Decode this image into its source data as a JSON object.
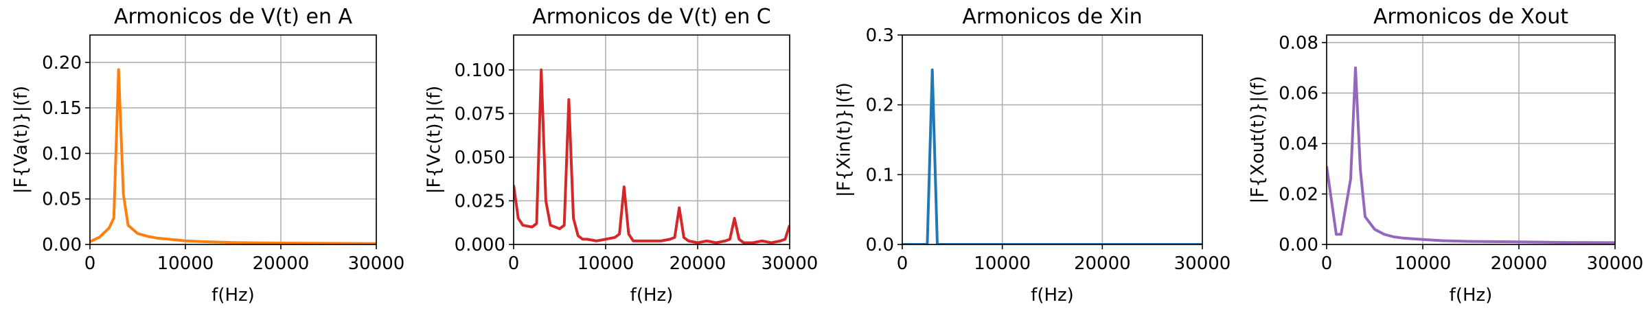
{
  "chart_data": [
    {
      "type": "line",
      "title": "Armonicos de V(t) en A",
      "xlabel": "f(Hz)",
      "ylabel": "|F{Va(t)}|(f)",
      "xlim": [
        0,
        30000
      ],
      "ylim": [
        0,
        0.23
      ],
      "xticks": [
        0,
        10000,
        20000,
        30000
      ],
      "xtick_labels": [
        "0",
        "10000",
        "20000",
        "30000"
      ],
      "yticks": [
        0,
        0.05,
        0.1,
        0.15,
        0.2
      ],
      "ytick_labels": [
        "0.00",
        "0.05",
        "0.10",
        "0.15",
        "0.20"
      ],
      "grid": true,
      "color": "#ff7f0e",
      "series": [
        {
          "x": [
            0,
            1000,
            2000,
            2500,
            3000,
            3500,
            4000,
            5000,
            6000,
            7000,
            8000,
            9000,
            10000,
            12000,
            15000,
            20000,
            25000,
            30000
          ],
          "y": [
            0.003,
            0.008,
            0.018,
            0.029,
            0.192,
            0.055,
            0.021,
            0.012,
            0.009,
            0.007,
            0.006,
            0.005,
            0.004,
            0.003,
            0.002,
            0.0015,
            0.0012,
            0.001
          ]
        }
      ]
    },
    {
      "type": "line",
      "title": "Armonicos de V(t) en C",
      "xlabel": "f(Hz)",
      "ylabel": "|F{Vc(t)}|(f)",
      "xlim": [
        0,
        30000
      ],
      "ylim": [
        0,
        0.12
      ],
      "xticks": [
        0,
        10000,
        20000,
        30000
      ],
      "xtick_labels": [
        "0",
        "10000",
        "20000",
        "30000"
      ],
      "yticks": [
        0,
        0.025,
        0.05,
        0.075,
        0.1
      ],
      "ytick_labels": [
        "0.000",
        "0.025",
        "0.050",
        "0.075",
        "0.100"
      ],
      "grid": true,
      "color": "#d62728",
      "series": [
        {
          "x": [
            0,
            500,
            1000,
            2000,
            2500,
            3000,
            3500,
            4000,
            5000,
            5500,
            6000,
            6500,
            7000,
            7500,
            8000,
            9000,
            10000,
            11000,
            11500,
            12000,
            12500,
            13000,
            14000,
            15000,
            16000,
            17000,
            17500,
            18000,
            18500,
            19000,
            20000,
            21000,
            22000,
            23000,
            23500,
            24000,
            24500,
            25000,
            26000,
            27000,
            28000,
            29000,
            29500,
            30000
          ],
          "y": [
            0.034,
            0.015,
            0.011,
            0.01,
            0.012,
            0.1,
            0.025,
            0.011,
            0.009,
            0.011,
            0.083,
            0.015,
            0.005,
            0.003,
            0.003,
            0.002,
            0.003,
            0.004,
            0.006,
            0.033,
            0.006,
            0.002,
            0.002,
            0.002,
            0.002,
            0.003,
            0.004,
            0.021,
            0.004,
            0.002,
            0.001,
            0.002,
            0.001,
            0.002,
            0.003,
            0.015,
            0.003,
            0.001,
            0.001,
            0.002,
            0.001,
            0.002,
            0.003,
            0.011
          ]
        }
      ]
    },
    {
      "type": "line",
      "title": "Armonicos de Xin",
      "xlabel": "f(Hz)",
      "ylabel": "|F{Xin(t)}|(f)",
      "xlim": [
        0,
        30000
      ],
      "ylim": [
        0,
        0.3
      ],
      "xticks": [
        0,
        10000,
        20000,
        30000
      ],
      "xtick_labels": [
        "0",
        "10000",
        "20000",
        "30000"
      ],
      "yticks": [
        0,
        0.1,
        0.2,
        0.3
      ],
      "ytick_labels": [
        "0.0",
        "0.1",
        "0.2",
        "0.3"
      ],
      "grid": true,
      "color": "#1f77b4",
      "series": [
        {
          "x": [
            0,
            2500,
            3000,
            3500,
            30000
          ],
          "y": [
            0,
            0,
            0.25,
            0,
            0
          ]
        }
      ]
    },
    {
      "type": "line",
      "title": "Armonicos de Xout",
      "xlabel": "f(Hz)",
      "ylabel": "|F{Xout(t)}|(f)",
      "xlim": [
        0,
        30000
      ],
      "ylim": [
        0,
        0.083
      ],
      "xticks": [
        0,
        10000,
        20000,
        30000
      ],
      "xtick_labels": [
        "0",
        "10000",
        "20000",
        "30000"
      ],
      "yticks": [
        0,
        0.02,
        0.04,
        0.06,
        0.08
      ],
      "ytick_labels": [
        "0.00",
        "0.02",
        "0.04",
        "0.06",
        "0.08"
      ],
      "grid": true,
      "color": "#9467bd",
      "series": [
        {
          "x": [
            0,
            1000,
            1500,
            2500,
            3000,
            3500,
            4000,
            5000,
            6000,
            7000,
            8000,
            10000,
            12000,
            15000,
            20000,
            25000,
            30000
          ],
          "y": [
            0.031,
            0.004,
            0.004,
            0.026,
            0.07,
            0.03,
            0.011,
            0.006,
            0.004,
            0.003,
            0.0025,
            0.002,
            0.0015,
            0.0012,
            0.001,
            0.0008,
            0.0007
          ]
        }
      ]
    }
  ]
}
